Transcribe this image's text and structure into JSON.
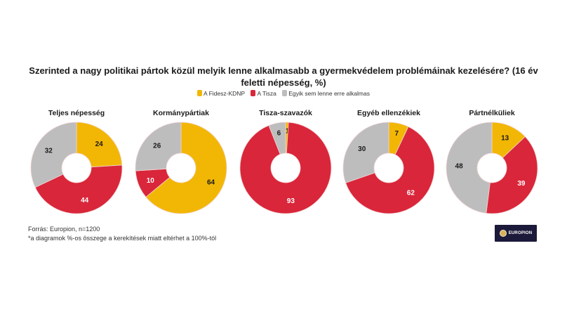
{
  "header": {
    "title": "Szerinted a nagy politikai pártok közül melyik lenne alkalmasabb a gyermekvédelem problémáinak kezelésére? (16 év feletti népesség, %)"
  },
  "legend": [
    {
      "label": "A Fidesz-KDNP",
      "color": "#f2b705"
    },
    {
      "label": "A Tisza",
      "color": "#d9263a"
    },
    {
      "label": "Egyik sem lenne erre alkalmas",
      "color": "#bdbdbd"
    }
  ],
  "footer": {
    "source": "Forrás: Europion, n=1200",
    "note": "*a diagramok %-os összege a kerekítések miatt eltérhet a 100%-tól"
  },
  "logo": {
    "text": "EUROPION"
  },
  "chart_data": [
    {
      "type": "pie",
      "title": "Teljes népesség",
      "categories": [
        "A Fidesz-KDNP",
        "A Tisza",
        "Egyik sem lenne erre alkalmas"
      ],
      "values": [
        24,
        44,
        32
      ]
    },
    {
      "type": "pie",
      "title": "Kormánypártiak",
      "categories": [
        "A Fidesz-KDNP",
        "A Tisza",
        "Egyik sem lenne erre alkalmas"
      ],
      "values": [
        64,
        10,
        26
      ]
    },
    {
      "type": "pie",
      "title": "Tisza-szavazók",
      "categories": [
        "A Fidesz-KDNP",
        "A Tisza",
        "Egyik sem lenne erre alkalmas"
      ],
      "values": [
        1,
        93,
        6
      ]
    },
    {
      "type": "pie",
      "title": "Egyéb ellenzékiek",
      "categories": [
        "A Fidesz-KDNP",
        "A Tisza",
        "Egyik sem lenne erre alkalmas"
      ],
      "values": [
        7,
        62,
        30
      ]
    },
    {
      "type": "pie",
      "title": "Pártnélküliek",
      "categories": [
        "A Fidesz-KDNP",
        "A Tisza",
        "Egyik sem lenne erre alkalmas"
      ],
      "values": [
        13,
        39,
        48
      ]
    }
  ]
}
